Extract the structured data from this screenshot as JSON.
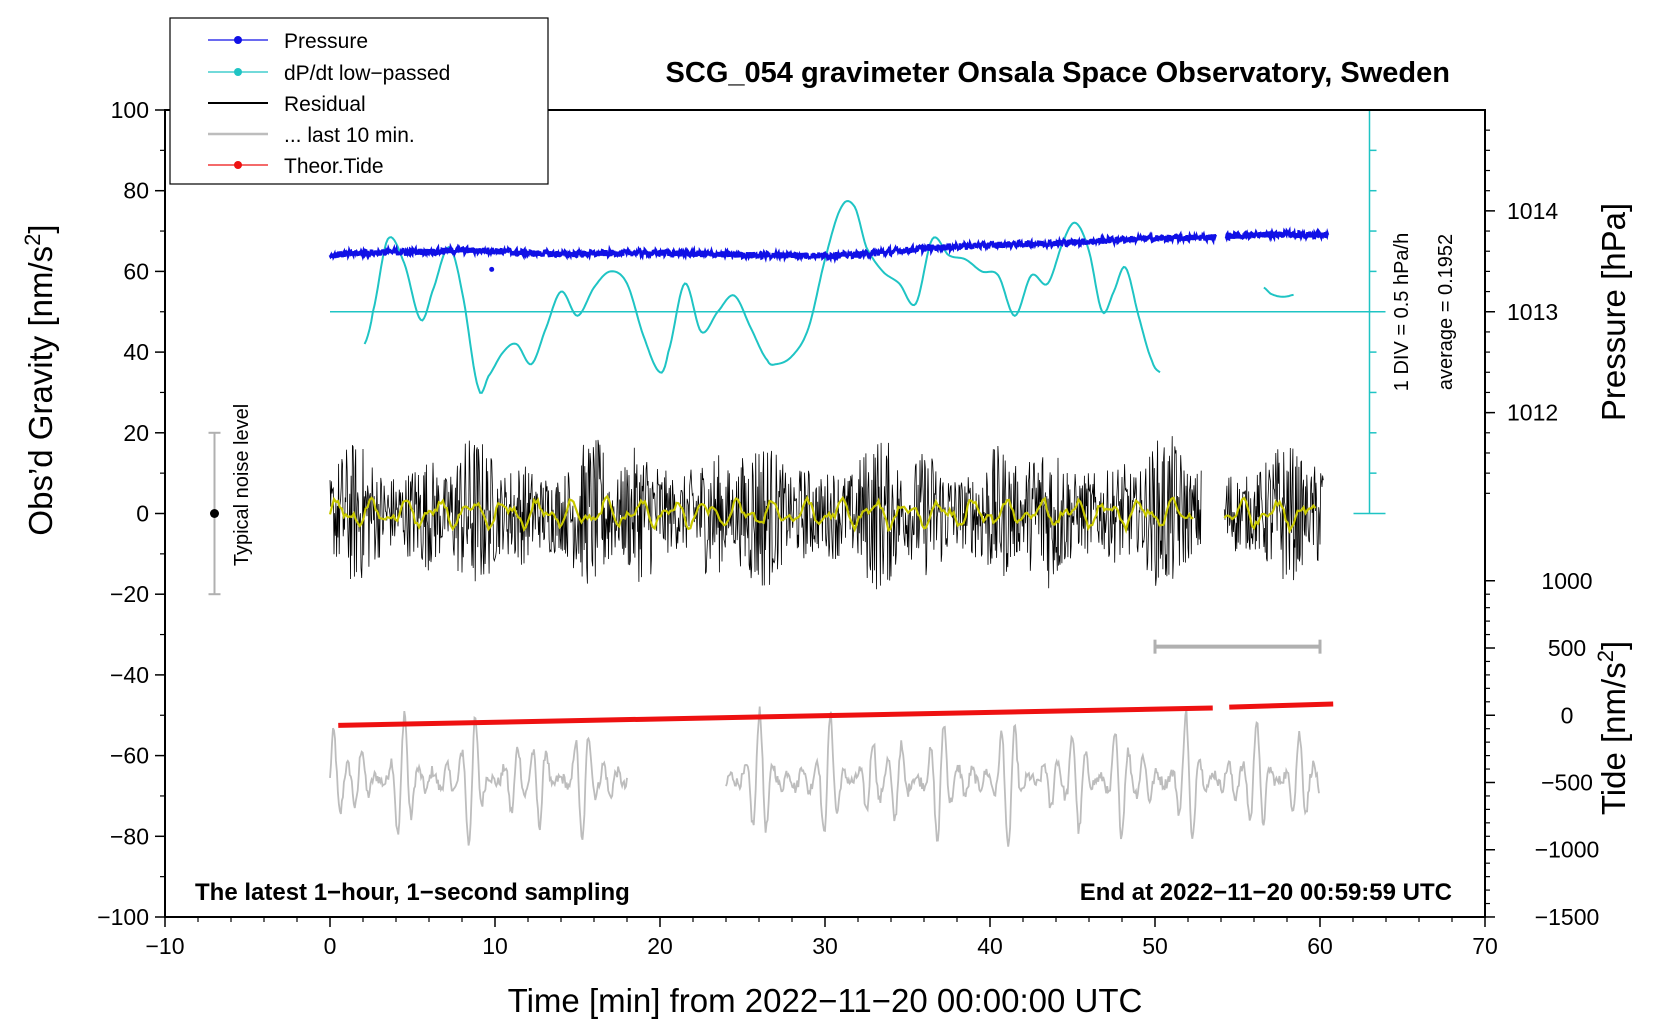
{
  "chart_data": {
    "type": "line",
    "title": "SCG_054 gravimeter Onsala Space Observatory, Sweden",
    "xlabel": "Time [min] from 2022−11−20 00:00:00 UTC",
    "ylabel": "Obs’d Gravity [nm/s",
    "ylabel_sup": "2",
    "ylabel_end": "]",
    "y2label": "Pressure [hPa]",
    "y3label": "Tide [nm/s",
    "y3label_sup": "2",
    "y3label_end": "]",
    "xlim": [
      -10,
      70
    ],
    "ylim": [
      -100,
      100
    ],
    "x_ticks": [
      -10,
      0,
      10,
      20,
      30,
      40,
      50,
      60,
      70
    ],
    "x_tick_labels": [
      "−10",
      "0",
      "10",
      "20",
      "30",
      "40",
      "50",
      "60",
      "70"
    ],
    "y_ticks": [
      -100,
      -80,
      -60,
      -40,
      -20,
      0,
      20,
      40,
      60,
      80,
      100
    ],
    "y_tick_labels": [
      "−100",
      "−80",
      "−60",
      "−40",
      "−20",
      "0",
      "20",
      "40",
      "60",
      "80",
      "100"
    ],
    "pressure_axis": {
      "ticks": [
        1012,
        1013,
        1014
      ],
      "tick_labels": [
        "1012",
        "1013",
        "1014"
      ],
      "gravity_at_1013": 50,
      "gravity_per_hpa": 25
    },
    "tide_axis": {
      "ticks": [
        -1500,
        -1000,
        -500,
        0,
        500,
        1000
      ],
      "tick_labels": [
        "−1500",
        "−1000",
        "−500",
        "0",
        "500",
        "1000"
      ],
      "gravity_at_zero": -50,
      "gravity_per_1000": 33.33
    },
    "legend": {
      "placement": "top-left",
      "entries": [
        "Pressure",
        "dP/dt low−passed",
        "Residual",
        "... last 10 min.",
        "Theor.Tide"
      ]
    },
    "colors": {
      "pressure": "#1010e6",
      "dpdt": "#1fc4c4",
      "residual": "#000000",
      "smoothed": "#c8c800",
      "last10": "#bdbdbd",
      "tide": "#ee1111",
      "noise_bar": "#b0b0b0"
    },
    "pressure_series": {
      "gaps": [
        [
          53.7,
          54.3
        ]
      ],
      "x": [
        0,
        2,
        4,
        6,
        8,
        10,
        12,
        14,
        16,
        18,
        20,
        22,
        24,
        26,
        28,
        30,
        32,
        34,
        36,
        38,
        40,
        42,
        44,
        46,
        48,
        50,
        52,
        53.6,
        54.4,
        56,
        58,
        60.5
      ],
      "y": [
        64.0,
        64.6,
        64.8,
        64.9,
        65.2,
        65.1,
        64.5,
        64.3,
        64.4,
        64.6,
        64.6,
        64.4,
        64.2,
        64.0,
        64.0,
        63.9,
        64.2,
        64.9,
        65.7,
        66.2,
        66.5,
        66.8,
        67.0,
        67.4,
        67.9,
        68.2,
        68.3,
        68.5,
        68.8,
        69.0,
        69.2,
        69.0
      ],
      "outlier": {
        "x": 9.8,
        "y": 60.5
      }
    },
    "dpdt_series": {
      "main": {
        "x": [
          2.1,
          2.6,
          3.5,
          4.5,
          5.5,
          6.2,
          7.2,
          8.0,
          9.0,
          9.6,
          10.5,
          11.3,
          12.2,
          13.0,
          14.0,
          15.0,
          16.0,
          17.0,
          18.0,
          19.0,
          20.0,
          20.5,
          21.5,
          22.5,
          23.5,
          24.5,
          25.5,
          26.5,
          27.0,
          28.0,
          29.0,
          30.0,
          31.0,
          31.8,
          32.5,
          33.5,
          34.5,
          35.5,
          36.5,
          37.5,
          38.5,
          39.5,
          40.5,
          41.5,
          42.5,
          43.5,
          44.5,
          45.2,
          46.0,
          46.8,
          47.5,
          48.2,
          49.0,
          49.8,
          50.3
        ],
        "y": [
          42,
          50,
          68,
          62,
          48,
          55,
          66,
          55,
          31,
          34,
          40,
          42,
          37,
          45,
          55,
          49,
          56,
          60,
          57,
          44,
          35,
          40,
          57,
          45,
          50,
          54,
          46,
          38,
          37,
          39,
          46,
          63,
          76,
          76,
          66,
          60,
          57,
          52,
          68,
          64,
          63,
          60,
          59,
          49,
          59,
          57,
          68,
          72,
          65,
          50,
          55,
          61,
          49,
          38,
          35
        ]
      },
      "tail": {
        "x": [
          56.6,
          57.0,
          57.5,
          58.0,
          58.4
        ],
        "y": [
          56.0,
          54.5,
          53.8,
          53.8,
          54.2
        ]
      },
      "baseline_y": 50
    },
    "residual_series": {
      "x_range": [
        0,
        60.2
      ],
      "gap": [
        52.8,
        54.2
      ],
      "amplitude_nm_s2": 20
    },
    "last10_series": {
      "segments": [
        [
          0,
          18
        ],
        [
          24,
          60
        ]
      ],
      "center_y": -66,
      "amplitude_nm_s2": 18
    },
    "tide_series": {
      "segments": [
        {
          "x": [
            0.5,
            53.5
          ],
          "y": [
            -52.5,
            -48.2
          ]
        },
        {
          "x": [
            54.5,
            60.8
          ],
          "y": [
            -48.0,
            -47.2
          ]
        }
      ]
    },
    "noise_level": {
      "x": -7,
      "center": 0,
      "half_range": 20,
      "label": "Typical noise level"
    },
    "last10_marker": {
      "x_range": [
        50,
        60
      ],
      "y": -33
    },
    "dpdt_scale": {
      "x": 63,
      "y_range": [
        0,
        100
      ],
      "divisions": 10,
      "label": "1 DIV = 0.5 hPa/h",
      "average_label": "average = 0.1952"
    },
    "bottom_left_text": "The latest 1−hour, 1−second sampling",
    "bottom_right_text": "End at 2022−11−20 00:59:59 UTC"
  }
}
